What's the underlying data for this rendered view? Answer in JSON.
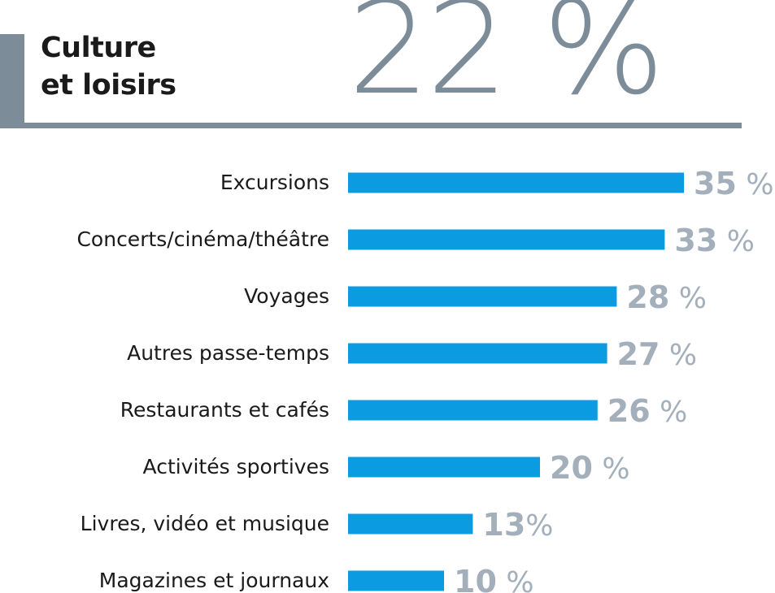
{
  "header": {
    "title_line1": "Culture",
    "title_line2": "et loisirs",
    "big_value": "22 %"
  },
  "colors": {
    "accent_gray": "#7d8c99",
    "value_gray": "#a3afba",
    "bar_blue": "#0a9be0",
    "text_dark": "#1a1a1a"
  },
  "chart_data": {
    "type": "bar",
    "orientation": "horizontal",
    "title": "",
    "xlabel": "",
    "ylabel": "",
    "categories": [
      "Excursions",
      "Concerts/cinéma/théâtre",
      "Voyages",
      "Autres passe-temps",
      "Restaurants et cafés",
      "Activités sportives",
      "Livres, vidéo et musique",
      "Magazines et journaux"
    ],
    "values": [
      35,
      33,
      28,
      27,
      26,
      20,
      13,
      10
    ],
    "value_labels": [
      {
        "num": "35",
        "unit": " %"
      },
      {
        "num": "33",
        "unit": " %"
      },
      {
        "num": "28",
        "unit": " %"
      },
      {
        "num": "27",
        "unit": " %"
      },
      {
        "num": "26",
        "unit": " %"
      },
      {
        "num": "20",
        "unit": " %"
      },
      {
        "num": "13",
        "unit": "%"
      },
      {
        "num": "10",
        "unit": " %"
      }
    ],
    "xlim": [
      0,
      35
    ],
    "grid": false,
    "legend": "none"
  }
}
